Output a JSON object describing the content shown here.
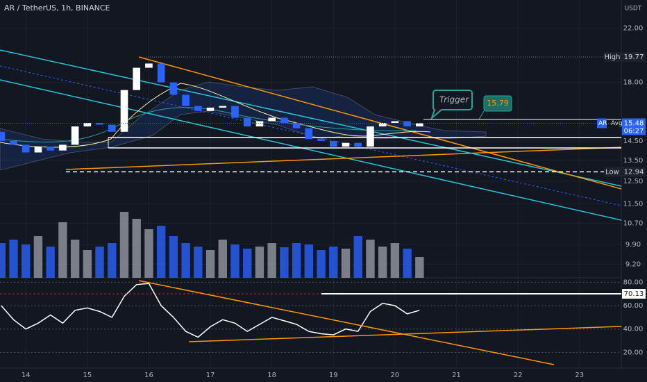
{
  "chart_data": {
    "type": "candlestick",
    "title": "AR / TetherUS, 1h, BINANCE",
    "currency": "USDT",
    "x": [
      13.6,
      13.8,
      14.0,
      14.2,
      14.4,
      14.6,
      14.8,
      15.0,
      15.2,
      15.4,
      15.6,
      15.8,
      16.0,
      16.2,
      16.4,
      16.6,
      16.8,
      17.0,
      17.2,
      17.4,
      17.6,
      17.8,
      18.0,
      18.2,
      18.4,
      18.6,
      18.8,
      19.0,
      19.2,
      19.4,
      19.6,
      19.8,
      20.0,
      20.2,
      20.4
    ],
    "open": [
      15.0,
      14.5,
      14.3,
      13.9,
      14.2,
      14.0,
      14.3,
      15.3,
      15.5,
      15.4,
      15.0,
      17.5,
      19.0,
      19.3,
      18.0,
      17.2,
      16.5,
      16.2,
      16.4,
      16.5,
      15.8,
      15.3,
      15.6,
      15.8,
      15.5,
      15.2,
      14.6,
      14.5,
      14.2,
      14.4,
      14.2,
      15.3,
      15.5,
      15.6,
      15.3
    ],
    "high": {
      "label": "High",
      "value": 19.77
    },
    "low": {
      "label": "Low",
      "value": 12.94
    },
    "close": [
      14.5,
      14.3,
      13.9,
      14.2,
      14.0,
      14.3,
      15.3,
      15.5,
      15.4,
      15.0,
      17.5,
      19.0,
      19.3,
      18.0,
      17.2,
      16.5,
      16.2,
      16.4,
      16.5,
      15.8,
      15.3,
      15.6,
      15.8,
      15.5,
      15.2,
      14.6,
      14.5,
      14.2,
      14.4,
      14.2,
      15.3,
      15.5,
      15.6,
      15.3,
      15.48
    ],
    "volume": [
      50,
      55,
      48,
      60,
      45,
      80,
      55,
      40,
      45,
      50,
      95,
      85,
      70,
      75,
      60,
      50,
      45,
      40,
      55,
      48,
      42,
      45,
      50,
      44,
      50,
      48,
      40,
      45,
      42,
      60,
      55,
      45,
      50,
      42,
      30
    ],
    "rsi": [
      60,
      48,
      40,
      45,
      52,
      45,
      56,
      58,
      55,
      50,
      68,
      78,
      79,
      60,
      50,
      38,
      33,
      42,
      48,
      45,
      38,
      44,
      50,
      47,
      44,
      38,
      36,
      35,
      40,
      38,
      55,
      62,
      60,
      53,
      56
    ],
    "xlim": [
      13.58,
      23.68
    ],
    "xticks": [
      14,
      15,
      16,
      17,
      18,
      19,
      20,
      21,
      22,
      23
    ],
    "ylim": [
      8.75,
      24.4
    ],
    "log_scale": true,
    "yticks": [
      {
        "value": 22,
        "label": "22.00"
      },
      {
        "value": 18,
        "label": "18.00"
      },
      {
        "value": 14.5,
        "label": "14.50"
      },
      {
        "value": 13.5,
        "label": "13.50"
      },
      {
        "value": 12.5,
        "label": "12.50"
      },
      {
        "value": 11.5,
        "label": "11.50"
      },
      {
        "value": 10.7,
        "label": "10.70"
      },
      {
        "value": 9.9,
        "label": "9.90"
      },
      {
        "value": 9.2,
        "label": "9.20"
      }
    ],
    "volume_lim": [
      0,
      100
    ],
    "rsi_ylim": [
      7.75,
      85
    ],
    "rsi_yticks": [
      {
        "value": 80,
        "label": "80.00"
      },
      {
        "value": 60,
        "label": "60.00"
      },
      {
        "value": 40,
        "label": "40.00"
      },
      {
        "value": 20,
        "label": "20.00"
      }
    ],
    "grid": true,
    "up_color": "#ffffff",
    "down_color": "#2962ff",
    "volume_up_color": "#9598a1",
    "volume_down_color": "#2962ff",
    "rsi_color": "#ffffff",
    "last": {
      "symbol": "AR",
      "value": 15.48,
      "countdown": "06:27",
      "avg": "Avg"
    },
    "trigger": {
      "label": "Trigger",
      "value": 15.79
    },
    "rsi_level": 70.13
  }
}
